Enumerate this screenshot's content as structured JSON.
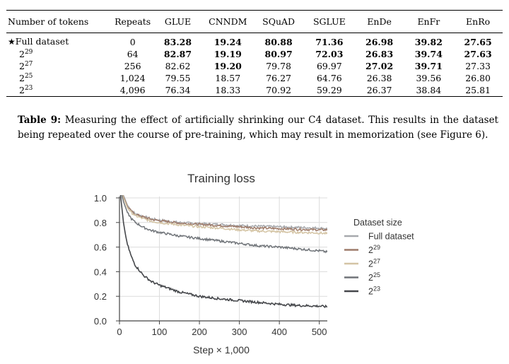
{
  "table": {
    "columns": [
      "Number of tokens",
      "Repeats",
      "GLUE",
      "CNNDM",
      "SQuAD",
      "SGLUE",
      "EnDe",
      "EnFr",
      "EnRo"
    ],
    "rows": [
      {
        "marker": "★",
        "tokens": "Full dataset",
        "exp": "",
        "cells": [
          "0",
          "83.28",
          "19.24",
          "80.88",
          "71.36",
          "26.98",
          "39.82",
          "27.65"
        ],
        "bold": [
          false,
          true,
          true,
          true,
          true,
          true,
          true,
          true
        ]
      },
      {
        "marker": "",
        "tokens": "2",
        "exp": "29",
        "cells": [
          "64",
          "82.87",
          "19.19",
          "80.97",
          "72.03",
          "26.83",
          "39.74",
          "27.63"
        ],
        "bold": [
          false,
          true,
          true,
          true,
          true,
          true,
          true,
          true
        ]
      },
      {
        "marker": "",
        "tokens": "2",
        "exp": "27",
        "cells": [
          "256",
          "82.62",
          "19.20",
          "79.78",
          "69.97",
          "27.02",
          "39.71",
          "27.33"
        ],
        "bold": [
          false,
          false,
          true,
          false,
          false,
          true,
          true,
          false
        ]
      },
      {
        "marker": "",
        "tokens": "2",
        "exp": "25",
        "cells": [
          "1,024",
          "79.55",
          "18.57",
          "76.27",
          "64.76",
          "26.38",
          "39.56",
          "26.80"
        ],
        "bold": [
          false,
          false,
          false,
          false,
          false,
          false,
          false,
          false
        ]
      },
      {
        "marker": "",
        "tokens": "2",
        "exp": "23",
        "cells": [
          "4,096",
          "76.34",
          "18.33",
          "70.92",
          "59.29",
          "26.37",
          "38.84",
          "25.81"
        ],
        "bold": [
          false,
          false,
          false,
          false,
          false,
          false,
          false,
          false
        ]
      }
    ]
  },
  "caption": {
    "label": "Table 9:",
    "text": "Measuring the effect of artificially shrinking our C4 dataset. This results in the dataset being repeated over the course of pre-training, which may result in memorization (see Figure ",
    "ref": "6",
    "end": ")."
  },
  "chart_data": {
    "type": "line",
    "title": "Training loss",
    "xlabel": "Step × 1,000",
    "ylabel": "",
    "xlim": [
      0,
      520
    ],
    "ylim": [
      0,
      1.0
    ],
    "xticks": [
      "0",
      "100",
      "200",
      "300",
      "400",
      "500"
    ],
    "yticks": [
      "0.0",
      "0.2",
      "0.4",
      "0.6",
      "0.8",
      "1.0"
    ],
    "grid": true,
    "legend_title": "Dataset size",
    "legend_position": "right",
    "series": [
      {
        "name": "Full dataset",
        "exp": "",
        "color": "#a7a9ad",
        "x": [
          0,
          10,
          20,
          30,
          40,
          60,
          80,
          100,
          150,
          200,
          250,
          300,
          350,
          400,
          450,
          500,
          520
        ],
        "y": [
          1.1,
          1.02,
          0.94,
          0.9,
          0.87,
          0.85,
          0.83,
          0.82,
          0.8,
          0.79,
          0.785,
          0.775,
          0.77,
          0.765,
          0.76,
          0.755,
          0.75
        ]
      },
      {
        "name": "2",
        "exp": "29",
        "color": "#9e7b6a",
        "x": [
          0,
          10,
          20,
          30,
          40,
          60,
          80,
          100,
          150,
          200,
          250,
          300,
          350,
          400,
          450,
          500,
          520
        ],
        "y": [
          1.1,
          1.01,
          0.93,
          0.89,
          0.865,
          0.845,
          0.825,
          0.815,
          0.795,
          0.785,
          0.775,
          0.765,
          0.755,
          0.75,
          0.745,
          0.74,
          0.74
        ]
      },
      {
        "name": "2",
        "exp": "27",
        "color": "#d4c4a4",
        "x": [
          0,
          10,
          20,
          30,
          40,
          60,
          80,
          100,
          150,
          200,
          250,
          300,
          350,
          400,
          450,
          500,
          520
        ],
        "y": [
          1.1,
          1.0,
          0.92,
          0.88,
          0.855,
          0.83,
          0.81,
          0.8,
          0.78,
          0.765,
          0.755,
          0.74,
          0.73,
          0.725,
          0.72,
          0.715,
          0.71
        ]
      },
      {
        "name": "2",
        "exp": "25",
        "color": "#707479",
        "x": [
          0,
          10,
          20,
          30,
          40,
          60,
          80,
          100,
          150,
          200,
          250,
          300,
          350,
          400,
          450,
          500,
          520
        ],
        "y": [
          1.1,
          0.97,
          0.88,
          0.83,
          0.8,
          0.76,
          0.735,
          0.72,
          0.69,
          0.67,
          0.65,
          0.63,
          0.61,
          0.6,
          0.585,
          0.57,
          0.56
        ]
      },
      {
        "name": "2",
        "exp": "23",
        "color": "#45474b",
        "x": [
          0,
          5,
          10,
          15,
          20,
          30,
          40,
          60,
          80,
          100,
          150,
          200,
          250,
          300,
          350,
          400,
          450,
          500,
          520
        ],
        "y": [
          1.1,
          0.95,
          0.8,
          0.7,
          0.62,
          0.52,
          0.45,
          0.37,
          0.32,
          0.29,
          0.235,
          0.2,
          0.18,
          0.165,
          0.15,
          0.135,
          0.125,
          0.12,
          0.115
        ]
      }
    ]
  }
}
